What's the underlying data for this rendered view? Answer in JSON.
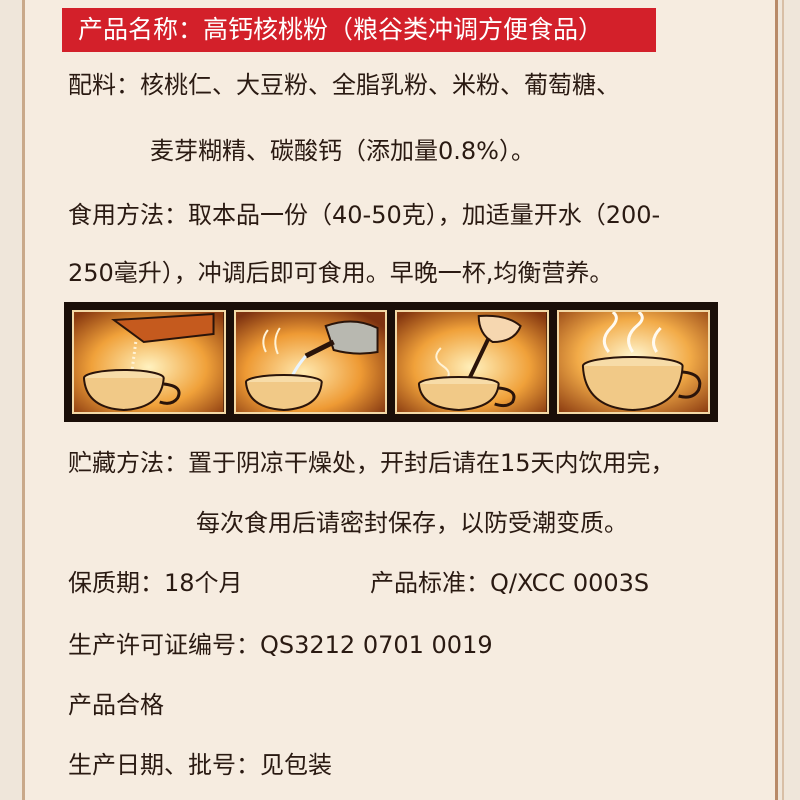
{
  "title": "产品名称：高钙核桃粉（粮谷类冲调方便食品）",
  "ingredients": {
    "line1": "配料：核桃仁、大豆粉、全脂乳粉、米粉、葡萄糖、",
    "line2": "麦芽糊精、碳酸钙（添加量0.8%）。"
  },
  "usage": {
    "line1": "食用方法：取本品一份（40-50克），加适量开水（200-",
    "line2": "250毫升），冲调后即可食用。早晚一杯,均衡营养。"
  },
  "storage": {
    "line1": "贮藏方法：置于阴凉干燥处，开封后请在15天内饮用完，",
    "line2": "每次食用后请密封保存，以防受潮变质。"
  },
  "shelf_life": "保质期：18个月",
  "standard": "产品标准：Q/XCC 0003S",
  "license": "生产许可证编号：QS3212 0701 0019",
  "qualified": "产品合格",
  "production_date": "生产日期、批号：见包装",
  "colors": {
    "title_bg": "#d3202a",
    "panel_warm": "#f0a13a",
    "panel_dark": "#1a0e08"
  },
  "steps": [
    {
      "icon": "pour-powder-icon"
    },
    {
      "icon": "pour-water-icon"
    },
    {
      "icon": "stir-spoon-icon"
    },
    {
      "icon": "steaming-cup-icon"
    }
  ]
}
